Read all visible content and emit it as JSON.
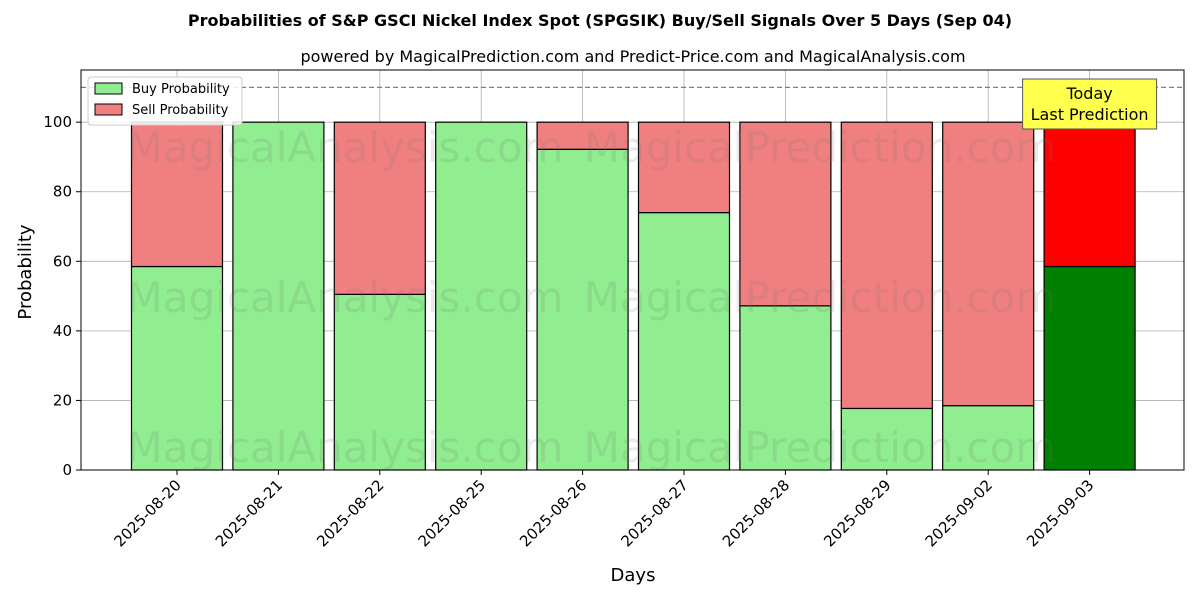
{
  "chart_data": {
    "type": "bar",
    "stacked": true,
    "title": "Probabilities of S&P GSCI Nickel Index Spot (SPGSIK) Buy/Sell Signals Over 5 Days (Sep 04)",
    "subtitle": "powered by MagicalPrediction.com and Predict-Price.com and MagicalAnalysis.com",
    "xlabel": "Days",
    "ylabel": "Probability",
    "ylim": [
      0,
      115
    ],
    "yticks": [
      0,
      20,
      40,
      60,
      80,
      100
    ],
    "grid": true,
    "reference_line": 110,
    "legend_position": "top-left",
    "categories": [
      "2025-08-20",
      "2025-08-21",
      "2025-08-22",
      "2025-08-25",
      "2025-08-26",
      "2025-08-27",
      "2025-08-28",
      "2025-08-29",
      "2025-09-02",
      "2025-09-03"
    ],
    "series": [
      {
        "name": "Buy Probability",
        "color": "#90ee90",
        "highlight_color": "#008000",
        "values": [
          58.5,
          100,
          50.5,
          100,
          92.2,
          74,
          47.2,
          17.7,
          18.5,
          58.5
        ]
      },
      {
        "name": "Sell Probability",
        "color": "#f08080",
        "highlight_color": "#ff0000",
        "values": [
          41.5,
          0,
          49.5,
          0,
          7.8,
          26,
          52.8,
          82.3,
          81.5,
          41.5
        ]
      }
    ],
    "highlight_index": 9,
    "annotation": {
      "line1": "Today",
      "line2": "Last Prediction",
      "color": "#ffff4d"
    },
    "watermarks": [
      "MagicalAnalysis.com",
      "MagicalPrediction.com"
    ]
  }
}
